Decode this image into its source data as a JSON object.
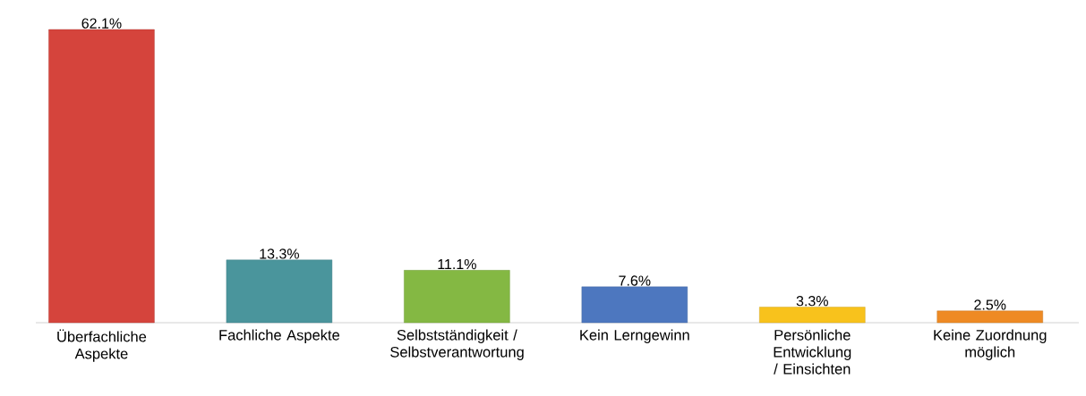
{
  "chart_data": {
    "type": "bar",
    "categories": [
      "Überfachliche Aspekte",
      "Fachliche Aspekte",
      "Selbstständigkeit / Selbstverantwortung",
      "Kein Lerngewinn",
      "Persönliche Entwicklung / Einsichten",
      "Keine Zuordnung möglich"
    ],
    "values": [
      62.1,
      13.3,
      11.1,
      7.6,
      3.3,
      2.5
    ],
    "value_labels": [
      "62.1%",
      "13.3%",
      "11.1%",
      "7.6%",
      "3.3%",
      "2.5%"
    ],
    "colors": [
      "#d5443c",
      "#4a959c",
      "#84b843",
      "#4d77bf",
      "#f8c21c",
      "#ee8a24"
    ],
    "tick_labels": "x"
  }
}
